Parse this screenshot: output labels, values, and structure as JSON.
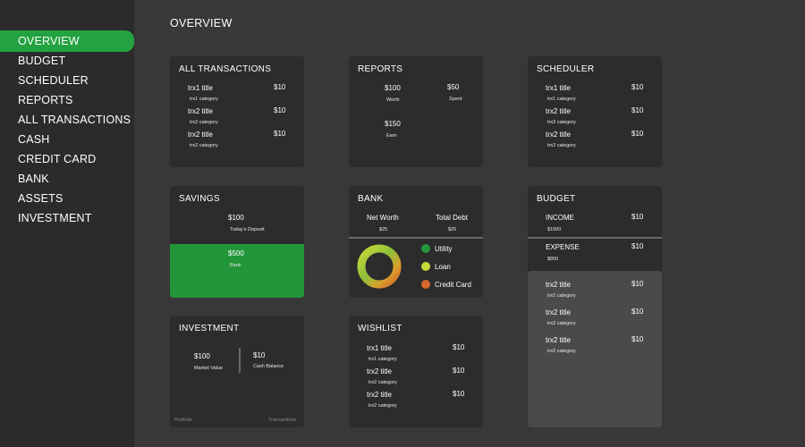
{
  "colors": {
    "accent": "#23a241",
    "utility": "#23963a",
    "loan": "#c6d83a",
    "credit_card": "#d8682c"
  },
  "sidebar": {
    "items": [
      {
        "label": "OVERVIEW",
        "active": true
      },
      {
        "label": "BUDGET"
      },
      {
        "label": "SCHEDULER"
      },
      {
        "label": "REPORTS"
      },
      {
        "label": "ALL TRANSACTIONS"
      },
      {
        "label": "CASH"
      },
      {
        "label": "CREDIT CARD"
      },
      {
        "label": "BANK"
      },
      {
        "label": "ASSETS"
      },
      {
        "label": "INVESTMENT"
      }
    ]
  },
  "page_title": "OVERVIEW",
  "all_transactions": {
    "title": "ALL TRANSACTIONS",
    "rows": [
      {
        "title": "trx1 title",
        "category": "trx1 category",
        "amount": "$10"
      },
      {
        "title": "trx2 title",
        "category": "trx2 category",
        "amount": "$10"
      },
      {
        "title": "trx2 title",
        "category": "trx2 category",
        "amount": "$10"
      }
    ]
  },
  "reports": {
    "title": "REPORTS",
    "worth_value": "$100",
    "worth_label": "Worth",
    "spent_value": "$50",
    "spent_label": "Spent",
    "earn_value": "$150",
    "earn_label": "Earn"
  },
  "scheduler": {
    "title": "SCHEDULER",
    "rows": [
      {
        "title": "trx1 title",
        "category": "trx1 category",
        "amount": "$10"
      },
      {
        "title": "trx2 title",
        "category": "trx2 category",
        "amount": "$10"
      },
      {
        "title": "trx2 title",
        "category": "trx2 category",
        "amount": "$10"
      }
    ]
  },
  "savings": {
    "title": "SAVINGS",
    "deposit_value": "$100",
    "deposit_label": "Today's Deposit",
    "bank_value": "$500",
    "bank_label": "Bank"
  },
  "bank": {
    "title": "BANK",
    "net_worth_label": "Net Worth",
    "net_worth_value": "$25",
    "total_debt_label": "Total Debt",
    "total_debt_value": "$25",
    "legend": [
      {
        "label": "Utility",
        "color": "#23963a"
      },
      {
        "label": "Loan",
        "color": "#c6d83a"
      },
      {
        "label": "Credit Card",
        "color": "#d8682c"
      }
    ]
  },
  "budget": {
    "title": "BUDGET",
    "income_label": "INCOME",
    "income_amount": "$10",
    "income_total": "$1000",
    "expense_label": "EXPENSE",
    "expense_amount": "$10",
    "expense_total": "$800",
    "rows": [
      {
        "title": "trx2 title",
        "category": "trx2 category",
        "amount": "$10"
      },
      {
        "title": "trx2 title",
        "category": "trx2 category",
        "amount": "$10"
      },
      {
        "title": "trx2 title",
        "category": "trx2 category",
        "amount": "$10"
      }
    ]
  },
  "investment": {
    "title": "INVESTMENT",
    "market_value": "$100",
    "market_label": "Market Value",
    "cash_value": "$10",
    "cash_label": "Cash Balance",
    "footer_left": "Portfolio",
    "footer_right": "Transactions"
  },
  "wishlist": {
    "title": "WISHLIST",
    "rows": [
      {
        "title": "trx1 title",
        "category": "trx1 category",
        "amount": "$10"
      },
      {
        "title": "trx2 title",
        "category": "trx2 category",
        "amount": "$10"
      },
      {
        "title": "trx2 title",
        "category": "trx2 category",
        "amount": "$10"
      }
    ]
  }
}
